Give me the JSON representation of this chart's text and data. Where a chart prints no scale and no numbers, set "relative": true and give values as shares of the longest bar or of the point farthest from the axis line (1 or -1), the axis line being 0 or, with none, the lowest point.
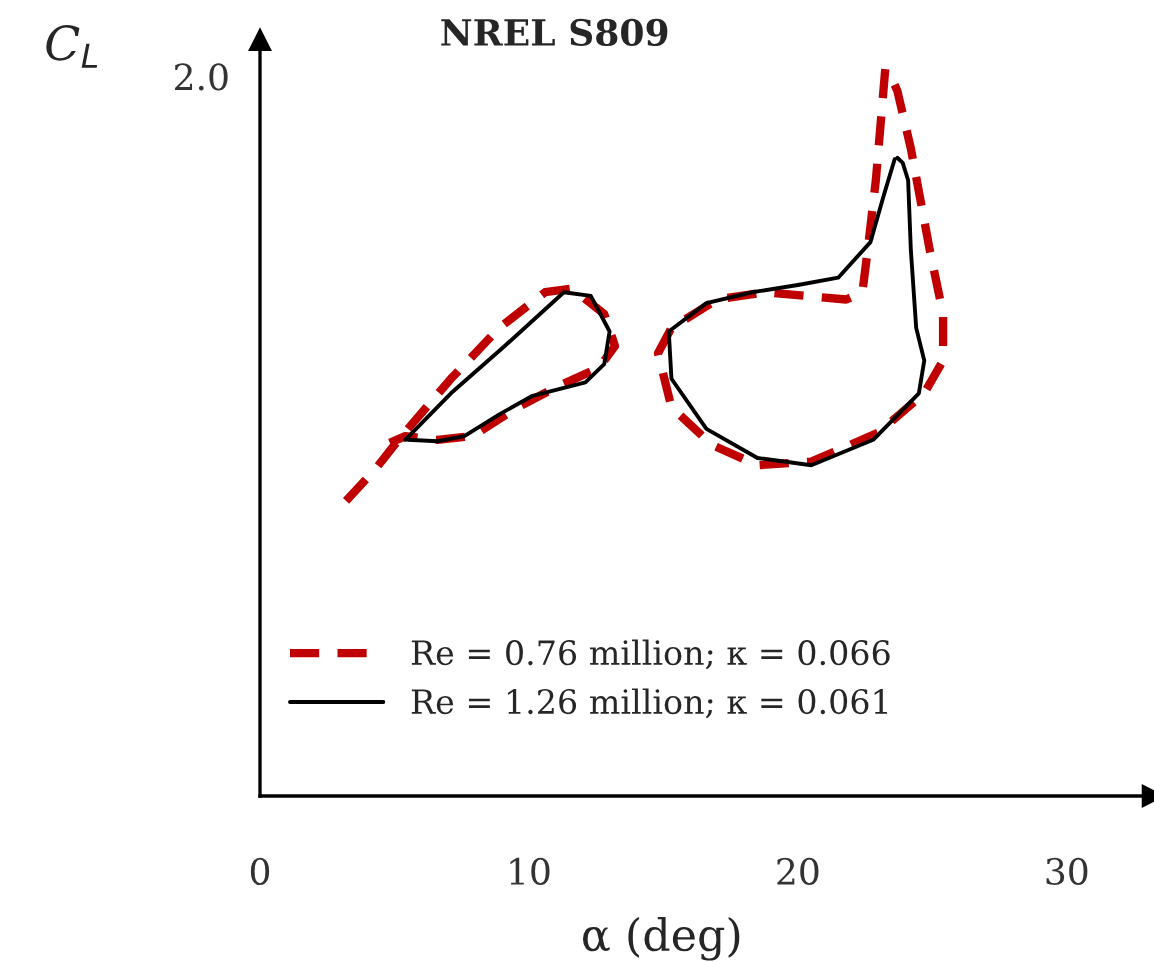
{
  "chart_data": {
    "type": "line",
    "title": "NREL S809",
    "xlabel": "α (deg)",
    "ylabel": "C$_{L}$",
    "xlim": [
      0,
      33.2
    ],
    "xticks": [
      0,
      10,
      20,
      30
    ],
    "relative": true,
    "annotations": [
      "2.0"
    ],
    "grid": false,
    "legend": "bottom left",
    "marker": "none",
    "series": [
      {
        "name": "Re = 0.76 million; κ = 0.066",
        "color": "#c00000",
        "line_style": "dashed",
        "x": [
          3.2,
          4.3,
          5.15,
          7.1,
          8.9,
          10.6,
          11.6,
          12.8,
          13.2,
          12.6,
          11.1,
          9.6,
          7.9,
          6.6,
          5.4,
          4.65
        ],
        "values": [
          0.406,
          0.45,
          0.49,
          0.574,
          0.644,
          0.693,
          0.698,
          0.663,
          0.619,
          0.589,
          0.564,
          0.535,
          0.495,
          0.49,
          0.495,
          0.483
        ]
      },
      {
        "name": "Re = 1.26 million; κ = 0.061",
        "color": "#000000",
        "line_style": "solid",
        "x": [
          5.4,
          7.1,
          9.1,
          11.3,
          12.3,
          13.0,
          12.8,
          12.1,
          10.1,
          8.9,
          7.6,
          6.6,
          5.5
        ],
        "values": [
          0.49,
          0.554,
          0.619,
          0.693,
          0.688,
          0.639,
          0.594,
          0.569,
          0.55,
          0.525,
          0.495,
          0.488,
          0.49
        ]
      },
      {
        "color": "#c00000",
        "line_style": "dashed",
        "x": [
          23.25,
          22.9,
          22.6,
          22.4,
          21.8,
          20.3,
          18.8,
          17.0,
          15.3,
          14.8,
          15.3,
          16.8,
          18.5,
          20.5,
          23.0,
          24.7,
          25.4,
          25.4,
          24.9,
          24.2,
          23.7,
          23.4
        ],
        "values": [
          1,
          0.847,
          0.752,
          0.693,
          0.683,
          0.688,
          0.693,
          0.683,
          0.644,
          0.609,
          0.535,
          0.483,
          0.455,
          0.46,
          0.5,
          0.554,
          0.599,
          0.663,
          0.752,
          0.891,
          0.97,
          0.995
        ]
      },
      {
        "color": "#000000",
        "line_style": "solid",
        "x": [
          23.6,
          23.2,
          22.7,
          21.5,
          20.0,
          18.3,
          16.6,
          15.2,
          15.3,
          16.6,
          18.5,
          20.5,
          22.8,
          24.5,
          24.7,
          24.4,
          24.2,
          24.1,
          23.9,
          23.7
        ],
        "values": [
          0.876,
          0.827,
          0.762,
          0.713,
          0.703,
          0.693,
          0.678,
          0.639,
          0.574,
          0.505,
          0.465,
          0.455,
          0.49,
          0.554,
          0.599,
          0.644,
          0.752,
          0.847,
          0.871,
          0.878
        ]
      }
    ]
  }
}
